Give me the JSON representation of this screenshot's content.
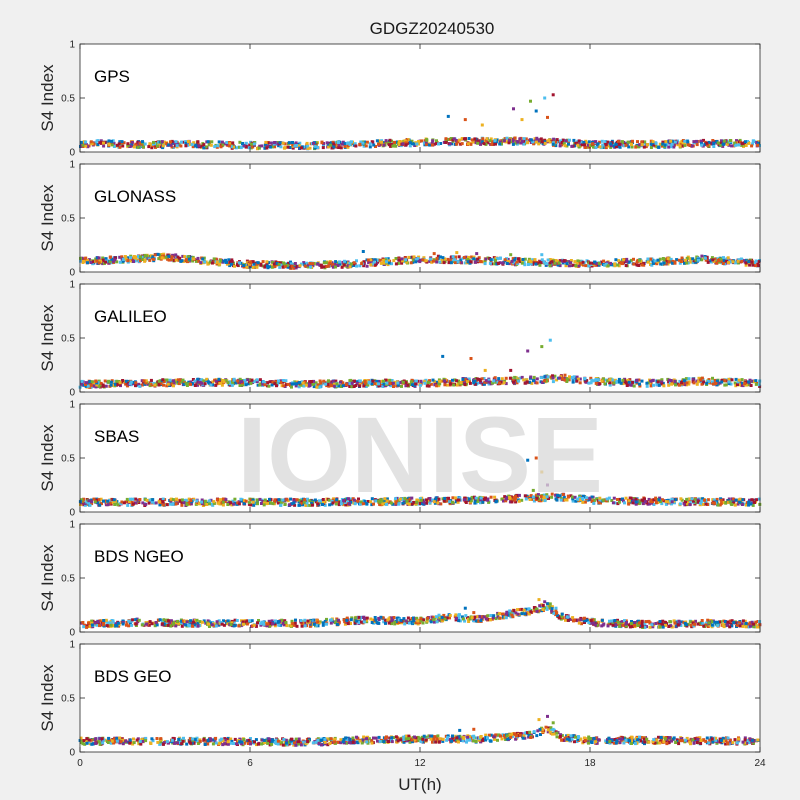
{
  "chart_data": {
    "type": "scatter",
    "title": "GDGZ20240530",
    "xlabel": "UT(h)",
    "ylabel": "S4 Index",
    "xlim": [
      0,
      24
    ],
    "ylim": [
      0,
      1
    ],
    "x_ticks": [
      "0",
      "6",
      "12",
      "18",
      "24"
    ],
    "y_ticks": [
      "0",
      "0.5",
      "1"
    ],
    "watermark": "IONISE",
    "series_colors": [
      "#0072BD",
      "#D95319",
      "#EDB120",
      "#7E2F8E",
      "#77AC30",
      "#4DBEEE",
      "#A2142F"
    ],
    "panels": [
      {
        "label": "GPS",
        "baseline": [
          [
            0,
            0.08
          ],
          [
            2,
            0.07
          ],
          [
            4,
            0.07
          ],
          [
            6,
            0.06
          ],
          [
            8,
            0.06
          ],
          [
            10,
            0.07
          ],
          [
            12,
            0.09
          ],
          [
            14,
            0.1
          ],
          [
            16,
            0.1
          ],
          [
            18,
            0.07
          ],
          [
            20,
            0.07
          ],
          [
            22,
            0.08
          ],
          [
            24,
            0.08
          ]
        ],
        "spikes": [
          [
            13.0,
            0.33
          ],
          [
            13.6,
            0.3
          ],
          [
            14.2,
            0.25
          ],
          [
            15.3,
            0.4
          ],
          [
            15.9,
            0.47
          ],
          [
            16.4,
            0.5
          ],
          [
            16.7,
            0.53
          ],
          [
            16.1,
            0.38
          ],
          [
            16.5,
            0.32
          ],
          [
            15.6,
            0.3
          ]
        ]
      },
      {
        "label": "GLONASS",
        "baseline": [
          [
            0,
            0.1
          ],
          [
            2,
            0.12
          ],
          [
            3,
            0.14
          ],
          [
            4,
            0.11
          ],
          [
            6,
            0.07
          ],
          [
            8,
            0.06
          ],
          [
            10,
            0.08
          ],
          [
            12,
            0.12
          ],
          [
            14,
            0.11
          ],
          [
            16,
            0.09
          ],
          [
            18,
            0.08
          ],
          [
            20,
            0.09
          ],
          [
            22,
            0.12
          ],
          [
            24,
            0.08
          ]
        ],
        "spikes": [
          [
            10.0,
            0.19
          ],
          [
            12.5,
            0.17
          ],
          [
            13.3,
            0.18
          ],
          [
            14.0,
            0.17
          ],
          [
            15.2,
            0.16
          ],
          [
            16.3,
            0.16
          ]
        ]
      },
      {
        "label": "GALILEO",
        "baseline": [
          [
            0,
            0.07
          ],
          [
            2,
            0.08
          ],
          [
            4,
            0.09
          ],
          [
            6,
            0.09
          ],
          [
            8,
            0.07
          ],
          [
            10,
            0.08
          ],
          [
            12,
            0.08
          ],
          [
            14,
            0.1
          ],
          [
            16,
            0.11
          ],
          [
            17,
            0.13
          ],
          [
            18,
            0.1
          ],
          [
            20,
            0.08
          ],
          [
            22,
            0.1
          ],
          [
            24,
            0.08
          ]
        ],
        "spikes": [
          [
            12.8,
            0.33
          ],
          [
            13.8,
            0.31
          ],
          [
            14.3,
            0.2
          ],
          [
            15.8,
            0.38
          ],
          [
            16.3,
            0.42
          ],
          [
            16.6,
            0.48
          ],
          [
            15.2,
            0.2
          ]
        ]
      },
      {
        "label": "SBAS",
        "baseline": [
          [
            0,
            0.09
          ],
          [
            4,
            0.09
          ],
          [
            8,
            0.09
          ],
          [
            12,
            0.1
          ],
          [
            14,
            0.11
          ],
          [
            16,
            0.13
          ],
          [
            17,
            0.14
          ],
          [
            18,
            0.11
          ],
          [
            20,
            0.1
          ],
          [
            24,
            0.09
          ]
        ],
        "spikes": [
          [
            15.8,
            0.48
          ],
          [
            16.1,
            0.5
          ],
          [
            16.3,
            0.37
          ],
          [
            16.5,
            0.25
          ],
          [
            16.0,
            0.2
          ]
        ]
      },
      {
        "label": "BDS NGEO",
        "baseline": [
          [
            0,
            0.07
          ],
          [
            2,
            0.09
          ],
          [
            4,
            0.08
          ],
          [
            6,
            0.08
          ],
          [
            8,
            0.08
          ],
          [
            10,
            0.11
          ],
          [
            12,
            0.1
          ],
          [
            13,
            0.14
          ],
          [
            14,
            0.12
          ],
          [
            16,
            0.2
          ],
          [
            16.5,
            0.24
          ],
          [
            17,
            0.14
          ],
          [
            18,
            0.09
          ],
          [
            20,
            0.07
          ],
          [
            22,
            0.08
          ],
          [
            24,
            0.07
          ]
        ],
        "spikes": [
          [
            13.6,
            0.22
          ],
          [
            13.9,
            0.18
          ],
          [
            16.2,
            0.3
          ],
          [
            16.4,
            0.28
          ],
          [
            16.6,
            0.26
          ],
          [
            16.8,
            0.22
          ]
        ]
      },
      {
        "label": "BDS GEO",
        "baseline": [
          [
            0,
            0.1
          ],
          [
            4,
            0.1
          ],
          [
            8,
            0.09
          ],
          [
            10,
            0.11
          ],
          [
            12,
            0.12
          ],
          [
            14,
            0.12
          ],
          [
            16,
            0.16
          ],
          [
            16.5,
            0.22
          ],
          [
            17,
            0.13
          ],
          [
            18,
            0.11
          ],
          [
            24,
            0.1
          ]
        ],
        "spikes": [
          [
            13.4,
            0.2
          ],
          [
            13.9,
            0.21
          ],
          [
            16.2,
            0.3
          ],
          [
            16.5,
            0.33
          ],
          [
            16.7,
            0.27
          ]
        ]
      }
    ]
  }
}
